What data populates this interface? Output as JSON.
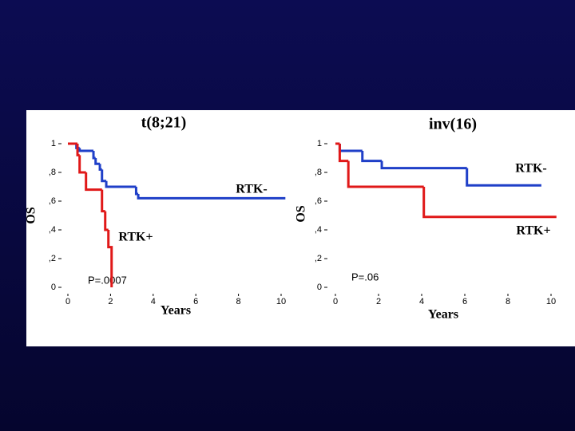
{
  "chart_data": [
    {
      "type": "line",
      "step": true,
      "title": "t(8;21)",
      "xlabel": "Years",
      "ylabel": "OS",
      "annotation": "P=.0007",
      "xlim": [
        0,
        10
      ],
      "ylim": [
        0,
        1
      ],
      "xticks": [
        0,
        2,
        4,
        6,
        8,
        10
      ],
      "yticks": [
        0,
        {
          "value": 0.2,
          "label": ",2"
        },
        {
          "value": 0.4,
          "label": ",4"
        },
        {
          "value": 0.6,
          "label": ",6"
        },
        {
          "value": 0.8,
          "label": ",8"
        },
        1
      ],
      "series": [
        {
          "name": "RTK-",
          "color": "#1f3fc8",
          "x": [
            0,
            0.4,
            0.55,
            1.2,
            1.3,
            1.5,
            1.6,
            1.8,
            3.2,
            3.3,
            10.2
          ],
          "y": [
            1,
            0.97,
            0.95,
            0.9,
            0.86,
            0.82,
            0.74,
            0.7,
            0.65,
            0.62,
            0.62
          ]
        },
        {
          "name": "RTK+",
          "color": "#e01818",
          "x": [
            0,
            0.45,
            0.55,
            0.85,
            1.6,
            1.75,
            1.9,
            2.05
          ],
          "y": [
            1,
            0.92,
            0.8,
            0.68,
            0.53,
            0.4,
            0.28,
            0
          ]
        }
      ]
    },
    {
      "type": "line",
      "step": true,
      "title": "inv(16)",
      "xlabel": "Years",
      "ylabel": "OS",
      "annotation": "P=.06",
      "xlim": [
        0,
        10
      ],
      "ylim": [
        0,
        1
      ],
      "xticks": [
        0,
        2,
        4,
        6,
        8,
        10
      ],
      "yticks": [
        0,
        {
          "value": 0.2,
          "label": ",2"
        },
        {
          "value": 0.4,
          "label": ",4"
        },
        {
          "value": 0.6,
          "label": ",6"
        },
        {
          "value": 0.8,
          "label": ",8"
        },
        1
      ],
      "series": [
        {
          "name": "RTK-",
          "color": "#1f3fc8",
          "x": [
            0,
            0.2,
            1.25,
            2.15,
            6.1,
            9.55
          ],
          "y": [
            1,
            0.95,
            0.88,
            0.83,
            0.71,
            0.71
          ]
        },
        {
          "name": "RTK+",
          "color": "#e01818",
          "x": [
            0,
            0.2,
            0.6,
            4.1,
            10.25
          ],
          "y": [
            1,
            0.88,
            0.7,
            0.49,
            0.49
          ]
        }
      ]
    }
  ]
}
